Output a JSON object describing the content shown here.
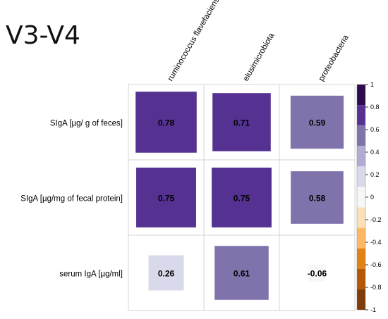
{
  "heading": "V3-V4",
  "chart_data": {
    "type": "heatmap",
    "title": "V3-V4",
    "columns": [
      "ruminococcus flavefaciens",
      "elusimicrobiota",
      "proteobacteria"
    ],
    "rows": [
      "SIgA [µg/ g of feces]",
      "SIgA [µg/mg of fecal protein]",
      "serum IgA [µg/ml]"
    ],
    "values": [
      [
        0.78,
        0.71,
        0.59
      ],
      [
        0.75,
        0.75,
        0.58
      ],
      [
        0.26,
        0.61,
        -0.06
      ]
    ],
    "value_labels": [
      [
        "0.78",
        "0.71",
        "0.59"
      ],
      [
        "0.75",
        "0.75",
        "0.58"
      ],
      [
        "0.26",
        "0.61",
        "-0.06"
      ]
    ],
    "colorbar": {
      "range": [
        -1,
        1
      ],
      "tick_labels": [
        "1",
        "0.8",
        "0.6",
        "0.4",
        "0.2",
        "0",
        "-0.2",
        "-0.4",
        "-0.6",
        "-0.8",
        "-1"
      ],
      "colors": [
        "#2d0a4e",
        "#553192",
        "#8073ac",
        "#b2abd2",
        "#d8daeb",
        "#f7f7f7",
        "#fee0b6",
        "#fdb863",
        "#e08214",
        "#b35806",
        "#7f3b08"
      ]
    },
    "legend_placement": "right",
    "grid": true
  }
}
